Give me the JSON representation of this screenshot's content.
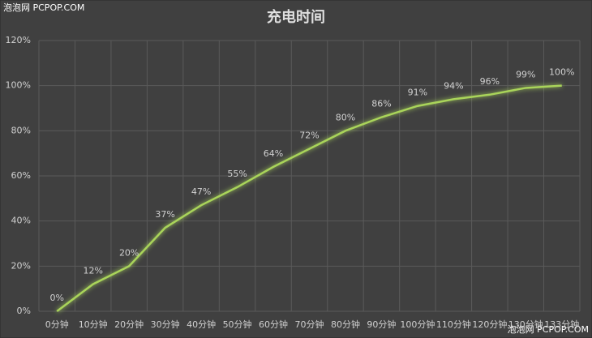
{
  "chart_data": {
    "type": "line",
    "title": "充电时间",
    "categories": [
      "0分钟",
      "10分钟",
      "20分钟",
      "30分钟",
      "40分钟",
      "50分钟",
      "60分钟",
      "70分钟",
      "80分钟",
      "90分钟",
      "100分钟",
      "110分钟",
      "120分钟",
      "130分钟",
      "133分钟"
    ],
    "values": [
      0,
      12,
      20,
      37,
      47,
      55,
      64,
      72,
      80,
      86,
      91,
      94,
      96,
      99,
      100
    ],
    "value_labels": [
      "0%",
      "12%",
      "20%",
      "37%",
      "47%",
      "55%",
      "64%",
      "72%",
      "80%",
      "86%",
      "91%",
      "94%",
      "96%",
      "99%",
      "100%"
    ],
    "color": "#a9d45a",
    "ylim": [
      0,
      120
    ],
    "yticks": [
      {
        "value": 0,
        "label": "0%"
      },
      {
        "value": 20,
        "label": "20%"
      },
      {
        "value": 40,
        "label": "40%"
      },
      {
        "value": 60,
        "label": "60%"
      },
      {
        "value": 80,
        "label": "80%"
      },
      {
        "value": 100,
        "label": "100%"
      },
      {
        "value": 120,
        "label": "120%"
      }
    ],
    "grid": true
  },
  "watermarks": [
    "泡泡网 PCPOP.COM",
    "泡泡网 PCPOP.COM"
  ]
}
